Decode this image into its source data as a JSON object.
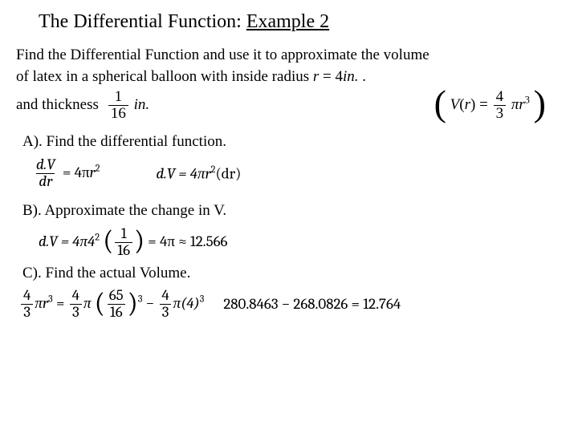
{
  "title": {
    "plain": "The Differential Function: ",
    "underlined": "Example 2"
  },
  "prompt": {
    "line1": "Find the Differential Function and use it to approximate the volume",
    "line2_prefix": "of latex in a spherical balloon with inside radius ",
    "radius_expr": {
      "lhs": "r",
      "eq": " = ",
      "val": "4",
      "unit": "in.",
      "trailing_dot": " ."
    },
    "thickness_label": "and thickness",
    "thickness_frac": {
      "num": "1",
      "den": "16"
    },
    "thickness_unit": "in.",
    "volume_formula": {
      "V": "V",
      "r_arg": "r",
      "eq": " = ",
      "four": "4",
      "three": "3",
      "pi": "π",
      "r": "r",
      "exp": "3"
    }
  },
  "partA": {
    "label": "A). Find the differential function.",
    "eq1": {
      "num": "d.V",
      "den": "dr",
      "rhs_prefix": " = 4π",
      "r": "r",
      "exp": "2"
    },
    "eq2": {
      "lhs": "d.V = 4π",
      "r": "r",
      "exp": "2",
      "tail": "(dr)"
    }
  },
  "partB": {
    "label": "B). Approximate the change in V.",
    "eq": {
      "lhs": "d.V = 4π4",
      "exp": "2",
      "frac_num": "1",
      "frac_den": "16",
      "rhs": " = 4π ≈ 12.566"
    }
  },
  "partC": {
    "label": "C). Find the actual Volume.",
    "lhs": {
      "f1": {
        "n": "4",
        "d": "3"
      },
      "pi1": "π",
      "r1": "r",
      "e1": "3",
      "eq": " = ",
      "f2": {
        "n": "4",
        "d": "3"
      },
      "pi2": "π",
      "f3": {
        "n": "65",
        "d": "16"
      },
      "e2": "3",
      "minus": " − ",
      "f4": {
        "n": "4",
        "d": "3"
      },
      "pi3": "π(4)",
      "e3": "3"
    },
    "rhs": "280.8463 − 268.0826 = 12.764"
  },
  "style": {
    "font_body_pt": 19,
    "font_title_pt": 24,
    "text_color": "#000000",
    "background_color": "#ffffff",
    "math_font": "Cambria / Times italic"
  }
}
